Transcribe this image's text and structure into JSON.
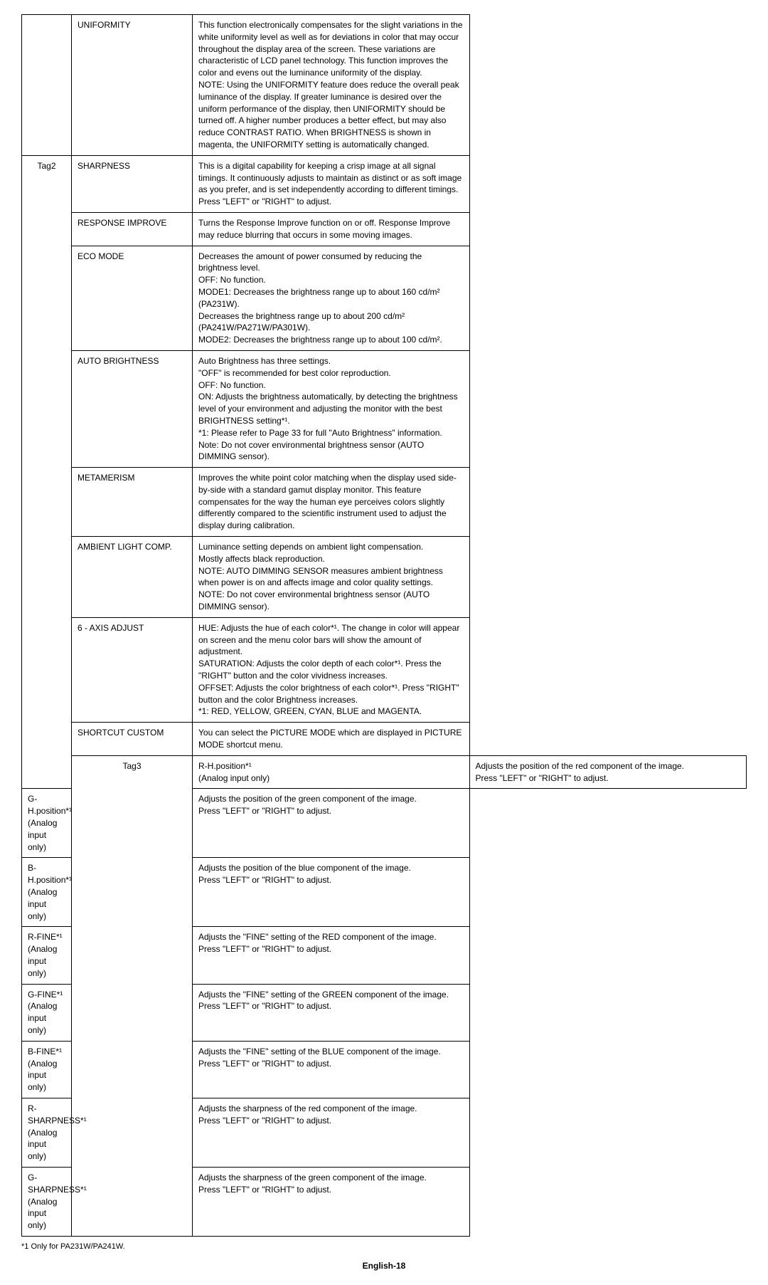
{
  "rows": [
    {
      "tag": "",
      "name": "UNIFORMITY",
      "desc": "This function electronically compensates for the slight variations in the white uniformity level as well as for deviations in color that may occur throughout the display area of the screen. These variations are characteristic of LCD panel technology. This function improves the color and evens out the luminance uniformity of the display.\nNOTE: Using the UNIFORMITY feature does reduce the overall peak luminance of the display. If greater luminance is desired over the uniform performance of the display, then UNIFORMITY should be turned off. A higher number produces a better effect, but may also reduce CONTRAST RATIO. When BRIGHTNESS is shown in magenta, the UNIFORMITY setting is automatically changed."
    },
    {
      "tag": "Tag2",
      "name": "SHARPNESS",
      "desc": "This is a digital capability for keeping a crisp image at all signal timings. It continuously adjusts to maintain as distinct or as soft image as you prefer, and is set independently according to different timings. Press \"LEFT\" or \"RIGHT\" to adjust.",
      "tagRowspan": 9
    },
    {
      "tag": "",
      "name": "RESPONSE IMPROVE",
      "desc": "Turns the Response Improve function on or off. Response Improve may reduce blurring that occurs in some moving images."
    },
    {
      "tag": "",
      "name": "ECO MODE",
      "desc": "Decreases the amount of power consumed by reducing the brightness level.\nOFF: No function.\nMODE1: Decreases the brightness range up to about 160 cd/m² (PA231W).\nDecreases the brightness range up to about 200 cd/m² (PA241W/PA271W/PA301W).\nMODE2: Decreases the brightness range up to about 100 cd/m²."
    },
    {
      "tag": "",
      "name": "AUTO BRIGHTNESS",
      "desc": "Auto Brightness has three settings.\n\"OFF\" is recommended for best color reproduction.\nOFF: No function.\nON: Adjusts the brightness automatically, by detecting the brightness level of your environment and adjusting the monitor with the best BRIGHTNESS setting*¹.\n*1: Please refer to Page 33 for full \"Auto Brightness\" information.\nNote: Do not cover environmental brightness sensor (AUTO DIMMING sensor)."
    },
    {
      "tag": "",
      "name": "METAMERISM",
      "desc": "Improves the white point color matching when the display used side-by-side with a standard gamut display monitor. This feature compensates for the way the human eye perceives colors slightly differently compared to the scientific instrument used to adjust the display during calibration."
    },
    {
      "tag": "",
      "name": "AMBIENT LIGHT COMP.",
      "desc": "Luminance setting depends on ambient light compensation.\nMostly affects black reproduction.\nNOTE: AUTO DIMMING SENSOR measures ambient brightness when power is on and affects image and color quality settings.\nNOTE: Do not cover environmental brightness sensor (AUTO DIMMING sensor)."
    },
    {
      "tag": "",
      "name": "6 - AXIS ADJUST",
      "desc": "HUE: Adjusts the hue of each color*¹. The change in color will appear on screen and the menu color bars will show the amount of adjustment.\nSATURATION: Adjusts the color depth of each color*¹. Press the \"RIGHT\" button and the color vividness increases.\nOFFSET: Adjusts the color brightness of each color*¹. Press \"RIGHT\" button and the color Brightness increases.\n*1: RED, YELLOW, GREEN, CYAN, BLUE and MAGENTA."
    },
    {
      "tag": "",
      "name": "SHORTCUT CUSTOM",
      "desc": "You can select the PICTURE MODE which are displayed in PICTURE MODE shortcut menu."
    },
    {
      "tag": "Tag3",
      "name": "R-H.position*¹\n(Analog input only)",
      "desc": "Adjusts the position of the red component of the image.\nPress \"LEFT\" or \"RIGHT\" to adjust.",
      "tagRowspan": 9
    },
    {
      "tag": "",
      "name": "G-H.position*¹\n(Analog input only)",
      "desc": "Adjusts the position of the green component of the image.\nPress \"LEFT\" or \"RIGHT\" to adjust."
    },
    {
      "tag": "",
      "name": "B-H.position*¹\n(Analog input only)",
      "desc": "Adjusts the position of the blue component of the image.\nPress \"LEFT\" or \"RIGHT\" to adjust."
    },
    {
      "tag": "",
      "name": "R-FINE*¹\n(Analog input only)",
      "desc": "Adjusts the \"FINE\" setting of the RED component of the image.\nPress \"LEFT\" or \"RIGHT\" to adjust."
    },
    {
      "tag": "",
      "name": "G-FINE*¹\n(Analog input only)",
      "desc": "Adjusts the \"FINE\" setting of the GREEN component of the image.\nPress \"LEFT\" or \"RIGHT\" to adjust."
    },
    {
      "tag": "",
      "name": "B-FINE*¹\n(Analog input only)",
      "desc": "Adjusts the \"FINE\" setting of the BLUE component of the image.\nPress \"LEFT\" or \"RIGHT\" to adjust."
    },
    {
      "tag": "",
      "name": "R-SHARPNESS*¹\n(Analog input only)",
      "desc": "Adjusts the sharpness of the red component of the image.\nPress \"LEFT\" or \"RIGHT\" to adjust."
    },
    {
      "tag": "",
      "name": "G-SHARPNESS*¹\n(Analog input only)",
      "desc": "Adjusts the sharpness of the green component of the image.\nPress \"LEFT\" or \"RIGHT\" to adjust."
    }
  ],
  "footnote": "*1  Only for PA231W/PA241W.",
  "pageFooter": "English-18"
}
